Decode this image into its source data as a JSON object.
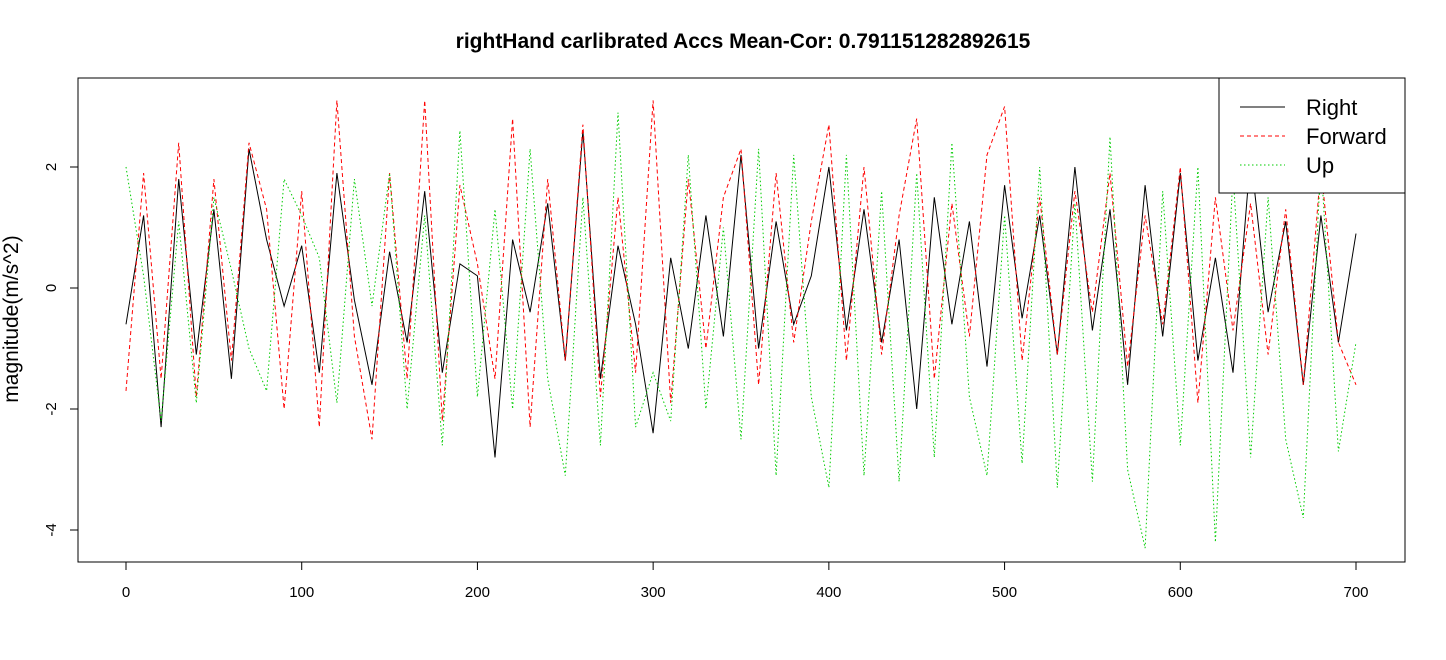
{
  "chart_data": {
    "type": "line",
    "title": "rightHand carlibrated Accs Mean-Cor: 0.791151282892615",
    "xlabel": "",
    "ylabel": "magnitude(m/s^2)",
    "xlim": [
      0,
      700
    ],
    "ylim": [
      -4.3,
      3.6
    ],
    "xticks": [
      0,
      100,
      200,
      300,
      400,
      500,
      600,
      700
    ],
    "yticks": [
      -4,
      -2,
      0,
      2
    ],
    "grid": false,
    "legend_position": "top-right",
    "series": [
      {
        "name": "Right",
        "color": "#000000",
        "dash": "solid",
        "x": [
          0,
          10,
          20,
          30,
          40,
          50,
          60,
          70,
          80,
          90,
          100,
          110,
          120,
          130,
          140,
          150,
          160,
          170,
          180,
          190,
          200,
          210,
          220,
          230,
          240,
          250,
          260,
          270,
          280,
          290,
          300,
          310,
          320,
          330,
          340,
          350,
          360,
          370,
          380,
          390,
          400,
          410,
          420,
          430,
          440,
          450,
          460,
          470,
          480,
          490,
          500,
          510,
          520,
          530,
          540,
          550,
          560,
          570,
          580,
          590,
          600,
          610,
          620,
          630,
          640,
          650,
          660,
          670,
          680,
          690,
          700
        ],
        "y": [
          -0.6,
          1.2,
          -2.3,
          1.8,
          -1.1,
          1.3,
          -1.5,
          2.3,
          0.8,
          -0.3,
          0.7,
          -1.4,
          1.9,
          -0.2,
          -1.6,
          0.6,
          -0.9,
          1.6,
          -1.4,
          0.4,
          0.2,
          -2.8,
          0.8,
          -0.4,
          1.4,
          -1.2,
          2.6,
          -1.5,
          0.7,
          -0.6,
          -2.4,
          0.5,
          -1.0,
          1.2,
          -0.8,
          2.2,
          -1.0,
          1.1,
          -0.6,
          0.2,
          2.0,
          -0.7,
          1.3,
          -0.9,
          0.8,
          -2.0,
          1.5,
          -0.6,
          1.1,
          -1.3,
          1.7,
          -0.5,
          1.2,
          -1.1,
          2.0,
          -0.7,
          1.3,
          -1.6,
          1.7,
          -0.8,
          1.9,
          -1.2,
          0.5,
          -1.4,
          2.2,
          -0.4,
          1.1,
          -1.6,
          1.2,
          -0.9,
          0.9
        ]
      },
      {
        "name": "Forward",
        "color": "#ff0000",
        "dash": "dashed",
        "x": [
          0,
          10,
          20,
          30,
          40,
          50,
          60,
          70,
          80,
          90,
          100,
          110,
          120,
          130,
          140,
          150,
          160,
          170,
          180,
          190,
          200,
          210,
          220,
          230,
          240,
          250,
          260,
          270,
          280,
          290,
          300,
          310,
          320,
          330,
          340,
          350,
          360,
          370,
          380,
          390,
          400,
          410,
          420,
          430,
          440,
          450,
          460,
          470,
          480,
          490,
          500,
          510,
          520,
          530,
          540,
          550,
          560,
          570,
          580,
          590,
          600,
          610,
          620,
          630,
          640,
          650,
          660,
          670,
          680,
          690,
          700
        ],
        "y": [
          -1.7,
          1.9,
          -1.5,
          2.4,
          -1.8,
          1.8,
          -1.2,
          2.4,
          1.3,
          -2.0,
          1.6,
          -2.3,
          3.1,
          -0.8,
          -2.5,
          1.9,
          -1.5,
          3.1,
          -2.2,
          1.7,
          0.4,
          -1.5,
          2.8,
          -2.3,
          1.8,
          -1.2,
          2.7,
          -1.8,
          1.5,
          -1.4,
          3.1,
          -1.9,
          1.8,
          -1.0,
          1.5,
          2.3,
          -1.6,
          1.9,
          -0.9,
          1.1,
          2.7,
          -1.2,
          2.0,
          -1.1,
          1.2,
          2.8,
          -1.5,
          1.4,
          -0.8,
          2.2,
          3.0,
          -1.2,
          1.5,
          -1.1,
          1.6,
          -0.4,
          1.9,
          -1.3,
          1.2,
          -0.6,
          2.0,
          -1.9,
          1.5,
          -0.7,
          1.4,
          -1.1,
          1.3,
          -1.6,
          2.0,
          -0.9,
          -1.6
        ]
      },
      {
        "name": "Up",
        "color": "#00cc00",
        "dash": "dotted",
        "x": [
          0,
          10,
          20,
          30,
          40,
          50,
          60,
          70,
          80,
          90,
          100,
          110,
          120,
          130,
          140,
          150,
          160,
          170,
          180,
          190,
          200,
          210,
          220,
          230,
          240,
          250,
          260,
          270,
          280,
          290,
          300,
          310,
          320,
          330,
          340,
          350,
          360,
          370,
          380,
          390,
          400,
          410,
          420,
          430,
          440,
          450,
          460,
          470,
          480,
          490,
          500,
          510,
          520,
          530,
          540,
          550,
          560,
          570,
          580,
          590,
          600,
          610,
          620,
          630,
          640,
          650,
          660,
          670,
          680,
          690,
          700
        ],
        "y": [
          2.0,
          0.2,
          -2.2,
          1.1,
          -1.9,
          1.5,
          0.3,
          -1.0,
          -1.7,
          1.8,
          1.2,
          0.5,
          -1.9,
          1.8,
          -0.3,
          1.9,
          -2.0,
          1.2,
          -2.6,
          2.6,
          -1.8,
          1.3,
          -2.0,
          2.3,
          -1.5,
          -3.1,
          1.5,
          -2.6,
          2.9,
          -2.3,
          -1.4,
          -2.2,
          2.2,
          -2.0,
          1.0,
          -2.5,
          2.3,
          -3.1,
          2.2,
          -1.8,
          -3.3,
          2.2,
          -3.1,
          1.6,
          -3.2,
          1.9,
          -2.8,
          2.4,
          -1.8,
          -3.1,
          1.2,
          -2.9,
          2.0,
          -3.3,
          1.4,
          -3.2,
          2.5,
          -3.0,
          -4.3,
          1.6,
          -2.6,
          2.0,
          -4.2,
          1.9,
          -2.8,
          1.5,
          -2.5,
          -3.8,
          2.1,
          -2.7,
          -0.9
        ]
      }
    ]
  }
}
